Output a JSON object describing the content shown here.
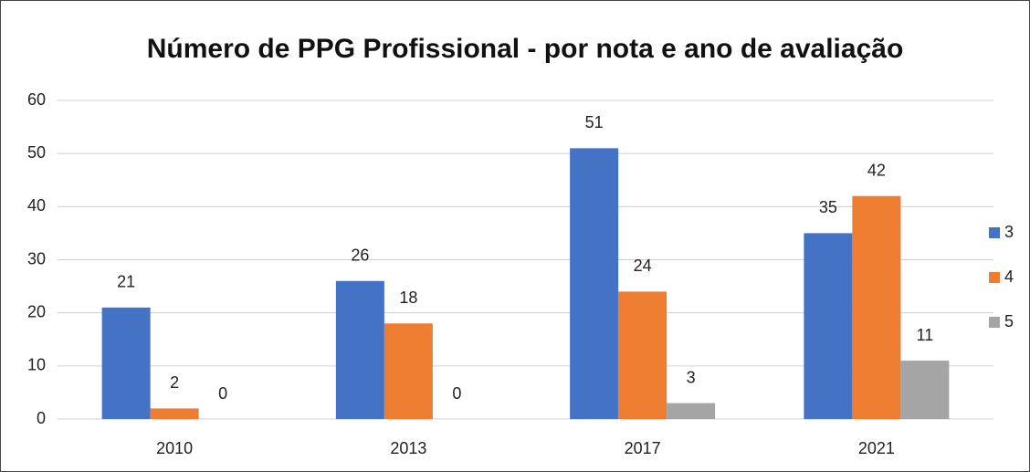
{
  "chart_data": {
    "type": "bar",
    "title": "Número de PPG Profissional - por nota e ano de avaliação",
    "categories": [
      "2010",
      "2013",
      "2017",
      "2021"
    ],
    "series": [
      {
        "name": "3",
        "color": "#4472c4",
        "values": [
          21,
          26,
          51,
          35
        ]
      },
      {
        "name": "4",
        "color": "#ed7d31",
        "values": [
          2,
          18,
          24,
          42
        ]
      },
      {
        "name": "5",
        "color": "#a5a5a5",
        "values": [
          0,
          0,
          3,
          11
        ]
      }
    ],
    "ylim": [
      0,
      60
    ],
    "yticks": [
      0,
      10,
      20,
      30,
      40,
      50,
      60
    ],
    "grid": true,
    "legend": "right"
  }
}
